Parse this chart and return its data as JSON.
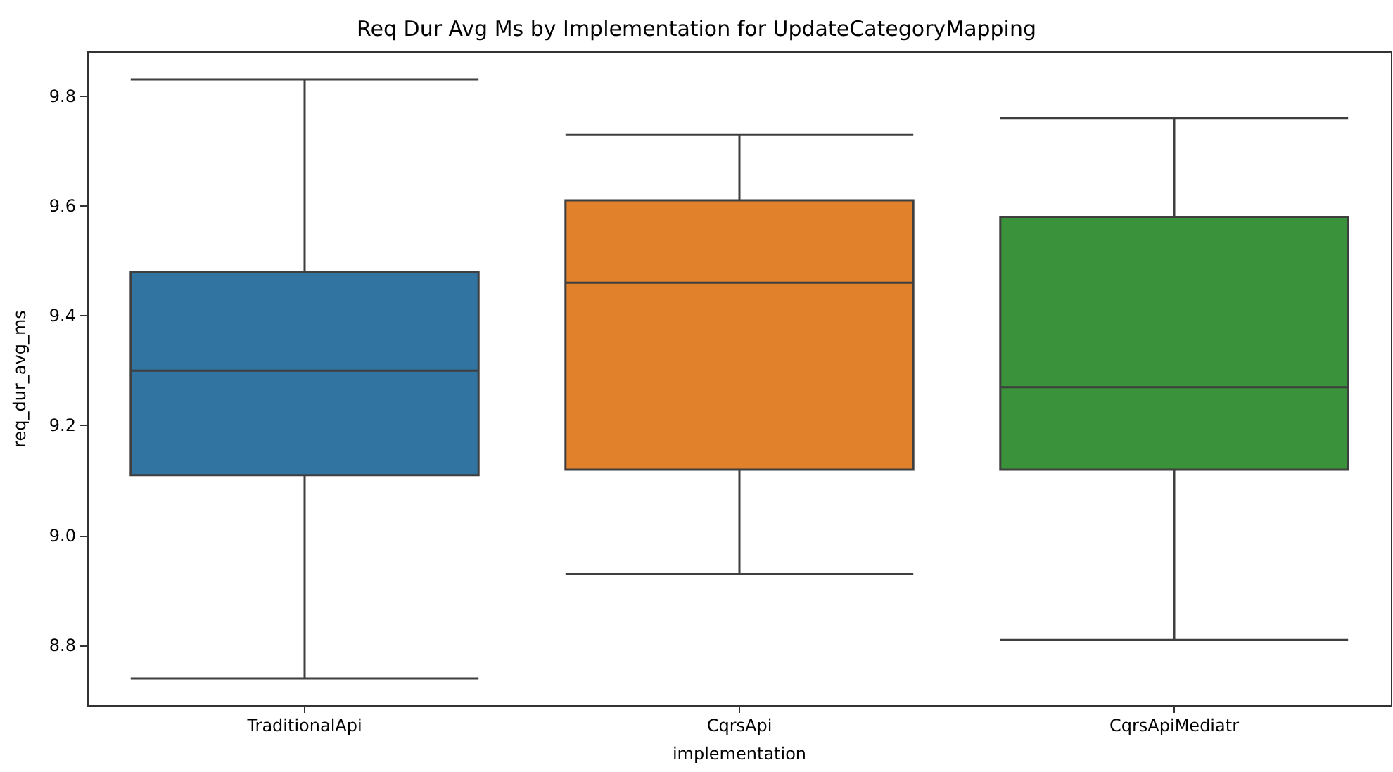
{
  "chart_data": {
    "type": "box",
    "title": "Req Dur Avg Ms by Implementation for UpdateCategoryMapping",
    "xlabel": "implementation",
    "ylabel": "req_dur_avg_ms",
    "categories": [
      "TraditionalApi",
      "CqrsApi",
      "CqrsApiMediatr"
    ],
    "boxes": [
      {
        "low": 8.74,
        "q1": 9.11,
        "median": 9.3,
        "q3": 9.48,
        "high": 9.83
      },
      {
        "low": 8.93,
        "q1": 9.12,
        "median": 9.46,
        "q3": 9.61,
        "high": 9.73
      },
      {
        "low": 8.81,
        "q1": 9.12,
        "median": 9.27,
        "q3": 9.58,
        "high": 9.76
      }
    ],
    "colors": [
      "#3274a1",
      "#e1812c",
      "#3a923a"
    ],
    "ylim": [
      8.69,
      9.88
    ],
    "yticks": [
      {
        "value": 8.8,
        "label": "8.8"
      },
      {
        "value": 9.0,
        "label": "9.0"
      },
      {
        "value": 9.2,
        "label": "9.2"
      },
      {
        "value": 9.4,
        "label": "9.4"
      },
      {
        "value": 9.6,
        "label": "9.6"
      },
      {
        "value": 9.8,
        "label": "9.8"
      }
    ],
    "grid": false
  }
}
